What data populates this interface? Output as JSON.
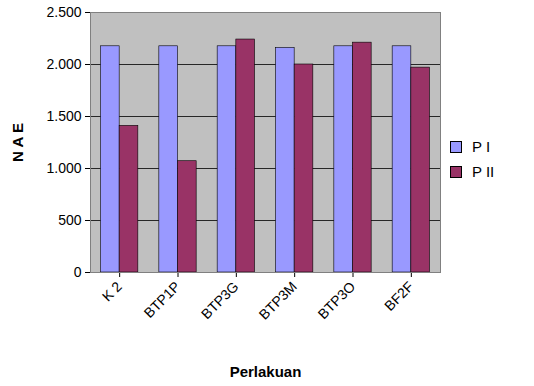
{
  "chart_data": {
    "type": "bar",
    "categories": [
      "K 2",
      "BTP1P",
      "BTP3G",
      "BTP3M",
      "BTP3O",
      "BF2F"
    ],
    "series": [
      {
        "name": "P I",
        "color": "#9999ff",
        "values": [
          2175,
          2175,
          2175,
          2160,
          2175,
          2175
        ]
      },
      {
        "name": "P II",
        "color": "#993366",
        "values": [
          1410,
          1070,
          2240,
          2000,
          2210,
          1970
        ]
      }
    ],
    "x_label": "Perlakuan",
    "y_label": "N A E",
    "ylim": [
      0,
      2500
    ],
    "yticks": [
      0,
      500,
      {
        "value": 1000,
        "label": "1.000"
      },
      {
        "value": 1500,
        "label": "1.500"
      },
      {
        "value": 2000,
        "label": "2.000"
      },
      {
        "value": 2500,
        "label": "2.500"
      }
    ],
    "grid": true,
    "legend": "right"
  }
}
